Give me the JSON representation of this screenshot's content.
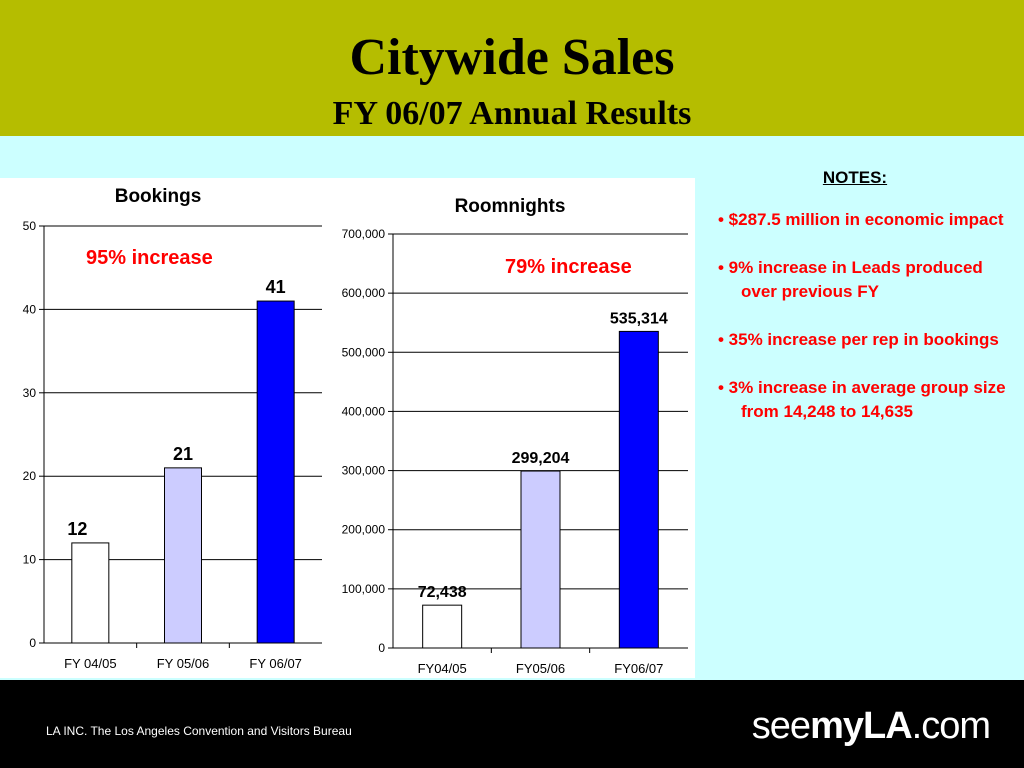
{
  "header": {
    "title": "Citywide Sales",
    "subtitle": "FY 06/07 Annual Results"
  },
  "charts": {
    "bookings_annotation": "95% increase",
    "roomnights_annotation": "79% increase"
  },
  "chart_data": [
    {
      "type": "bar",
      "title": "Bookings",
      "categories": [
        "FY 04/05",
        "FY 05/06",
        "FY 06/07"
      ],
      "values": [
        12,
        21,
        41
      ],
      "value_labels": [
        "12",
        "21",
        "41"
      ],
      "ylim": [
        0,
        50
      ],
      "yticks": [
        0,
        10,
        20,
        30,
        40,
        50
      ],
      "ytick_labels": [
        "0",
        "10",
        "20",
        "30",
        "40",
        "50"
      ],
      "bar_colors": [
        "#FFFFFF",
        "#CCCCFF",
        "#0000FF"
      ],
      "grid": true
    },
    {
      "type": "bar",
      "title": "Roomnights",
      "categories": [
        "FY04/05",
        "FY05/06",
        "FY06/07"
      ],
      "values": [
        72438,
        299204,
        535314
      ],
      "value_labels": [
        "72,438",
        "299,204",
        "535,314"
      ],
      "ylim": [
        0,
        700000
      ],
      "yticks": [
        0,
        100000,
        200000,
        300000,
        400000,
        500000,
        600000,
        700000
      ],
      "ytick_labels": [
        "0",
        "100,000",
        "200,000",
        "300,000",
        "400,000",
        "500,000",
        "600,000",
        "700,000"
      ],
      "bar_colors": [
        "#FFFFFF",
        "#CCCCFF",
        "#0000FF"
      ],
      "grid": true
    }
  ],
  "notes": {
    "heading": "NOTES:",
    "items": [
      "• $287.5 million in economic impact",
      "• 9% increase in Leads produced over previous FY",
      "• 35% increase per rep in bookings",
      "• 3% increase in average group size from 14,248 to 14,635"
    ]
  },
  "footer": {
    "org": "LA INC. The Los Angeles Convention and Visitors Bureau",
    "logo_pre": "see",
    "logo_mid": "myLA",
    "logo_post": ".com"
  }
}
